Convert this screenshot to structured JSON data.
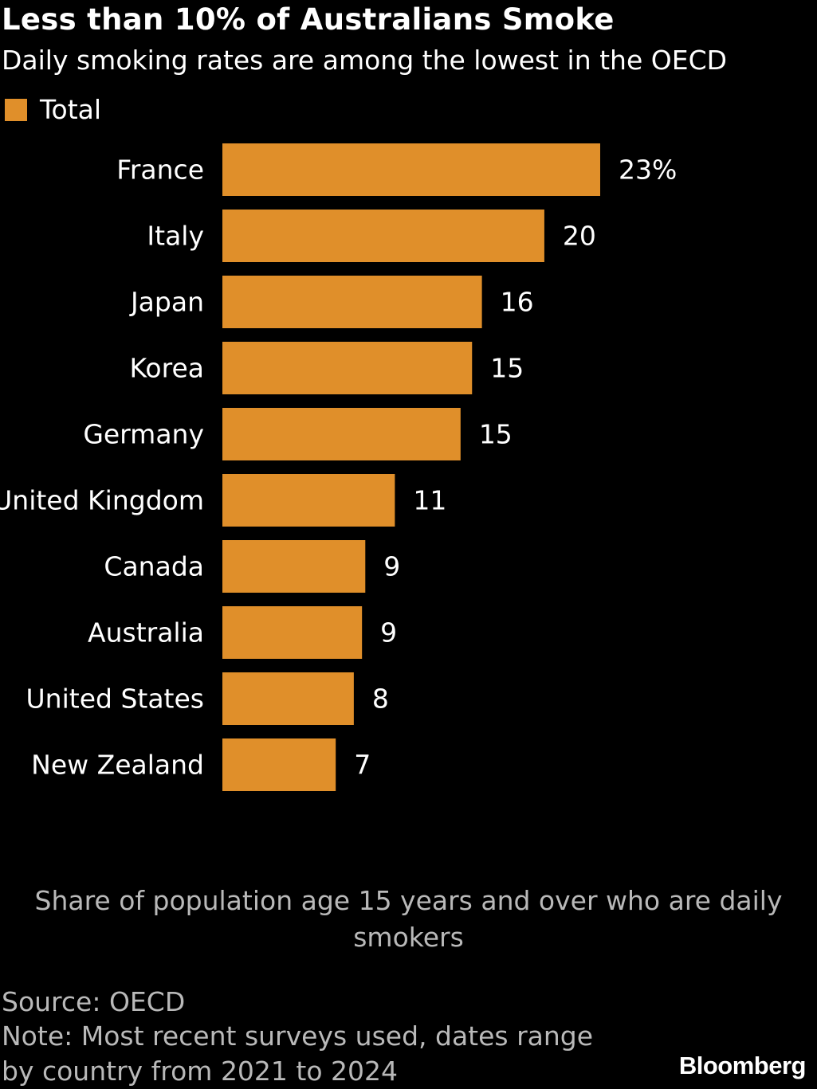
{
  "header": {
    "title": "Less than 10% of Australians Smoke",
    "subtitle": "Daily smoking rates are among the lowest in the OECD"
  },
  "footer": {
    "source": "Source: OECD",
    "note": "Note: Most recent surveys used, dates range by country from 2021 to 2024",
    "brand": "Bloomberg"
  },
  "colors": {
    "bar": "#E08F2A",
    "background": "#000000"
  },
  "chart_data": {
    "type": "bar",
    "orientation": "horizontal",
    "title": "Less than 10% of Australians Smoke",
    "subtitle": "Daily smoking rates are among the lowest in the OECD",
    "xlabel": "Share of population age 15 years and over who are daily smokers",
    "ylabel": "",
    "legend": {
      "entries": [
        "Total"
      ],
      "placement": "top-left"
    },
    "grid": false,
    "xlim": [
      0,
      23
    ],
    "categories": [
      "France",
      "Italy",
      "Japan",
      "Korea",
      "Germany",
      "United Kingdom",
      "Canada",
      "Australia",
      "United States",
      "New Zealand"
    ],
    "series": [
      {
        "name": "Total",
        "values": [
          23,
          19.6,
          15.8,
          15.2,
          14.5,
          10.5,
          8.7,
          8.5,
          8,
          6.9
        ],
        "labels": [
          "23%",
          "20",
          "16",
          "15",
          "15",
          "11",
          "9",
          "9",
          "8",
          "7"
        ]
      }
    ]
  }
}
